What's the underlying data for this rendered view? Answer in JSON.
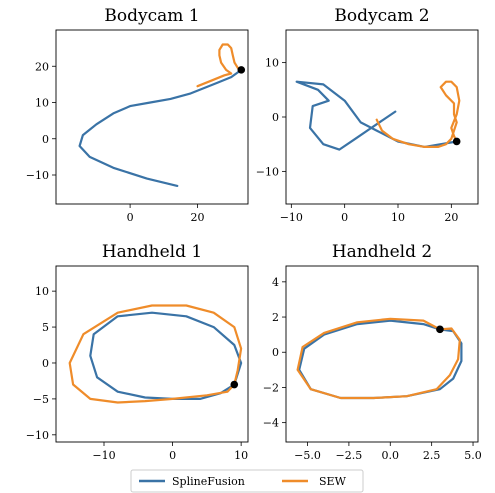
{
  "colors": {
    "SplineFusion": "#3a73a6",
    "SEW": "#ef8c2a",
    "endpoint": "#000000"
  },
  "legend": {
    "placement": "bottom-center",
    "entries": [
      "SplineFusion",
      "SEW"
    ]
  },
  "chart_data": [
    {
      "type": "line",
      "title": "Bodycam 1",
      "xlim": [
        -22,
        35
      ],
      "ylim": [
        -18,
        30
      ],
      "xticks": [
        0,
        20
      ],
      "yticks": [
        -10,
        0,
        10,
        20
      ],
      "grid": false,
      "series": [
        {
          "name": "SplineFusion",
          "x": [
            14,
            5,
            -5,
            -12,
            -15,
            -14,
            -10,
            -5,
            0,
            6,
            12,
            18,
            22,
            26,
            30,
            33
          ],
          "y": [
            -13,
            -11,
            -8,
            -5,
            -2,
            1,
            4,
            7,
            9,
            10,
            11,
            12.5,
            14,
            15.5,
            17,
            19
          ]
        },
        {
          "name": "SEW",
          "x": [
            20,
            24,
            28,
            30,
            28.5,
            27,
            26.5,
            26.5,
            27.5,
            29,
            30,
            30.5,
            31,
            32,
            33
          ],
          "y": [
            14.5,
            16,
            17.5,
            18,
            19,
            21,
            23,
            24.5,
            26,
            26,
            25,
            23,
            21,
            19.5,
            19
          ]
        }
      ],
      "endpoint": [
        33,
        19
      ]
    },
    {
      "type": "line",
      "title": "Bodycam 2",
      "xlim": [
        -11,
        25
      ],
      "ylim": [
        -16,
        16
      ],
      "xticks": [
        -10,
        0,
        10,
        20
      ],
      "yticks": [
        -10,
        0,
        10
      ],
      "grid": false,
      "series": [
        {
          "name": "SplineFusion",
          "x": [
            9.5,
            5,
            2,
            -1,
            -4,
            -6.5,
            -6,
            -3,
            -5,
            -9,
            -4,
            0,
            3,
            6,
            10,
            15,
            21
          ],
          "y": [
            1,
            -2,
            -4,
            -6,
            -5,
            -2,
            2,
            3,
            5,
            6.5,
            6,
            3,
            -1,
            -2.5,
            -4.5,
            -5.5,
            -4.5
          ]
        },
        {
          "name": "SEW",
          "x": [
            6,
            7,
            9,
            12,
            15,
            17.5,
            19,
            20,
            20.5,
            21,
            20.5,
            20.5,
            19,
            18,
            19,
            20,
            21,
            21.5,
            21,
            20,
            20.5,
            21
          ],
          "y": [
            -0.5,
            -2.5,
            -4,
            -5,
            -5.5,
            -5.5,
            -5,
            -4,
            -2.5,
            -1,
            0.5,
            2.5,
            4,
            5.5,
            6.5,
            6.5,
            5.5,
            3,
            0.5,
            -2,
            -3.5,
            -4.5
          ]
        }
      ],
      "endpoint": [
        21,
        -4.5
      ]
    },
    {
      "type": "line",
      "title": "Handheld 1",
      "xlim": [
        -17,
        11
      ],
      "ylim": [
        -11,
        13.5
      ],
      "xticks": [
        -10,
        0,
        10
      ],
      "yticks": [
        -10,
        -5,
        0,
        5,
        10
      ],
      "grid": false,
      "series": [
        {
          "name": "SplineFusion",
          "x": [
            9,
            10,
            9,
            6,
            2,
            -3,
            -8,
            -11.5,
            -12,
            -11,
            -8,
            -4,
            0,
            4,
            7,
            9
          ],
          "y": [
            -3,
            0,
            2.5,
            5,
            6.5,
            7,
            6.5,
            4,
            1,
            -2,
            -4,
            -4.8,
            -5,
            -5,
            -4.2,
            -3
          ]
        },
        {
          "name": "SEW",
          "x": [
            9,
            9.5,
            10,
            9,
            6,
            2,
            -3,
            -8,
            -13,
            -15,
            -14.5,
            -12,
            -8,
            -4,
            0,
            5,
            8,
            9
          ],
          "y": [
            -3,
            -1,
            2,
            5,
            7,
            8,
            8,
            7,
            4,
            0,
            -3,
            -5,
            -5.5,
            -5.3,
            -5,
            -4.5,
            -4,
            -3
          ]
        }
      ],
      "endpoint": [
        9,
        -3
      ]
    },
    {
      "type": "line",
      "title": "Handheld 2",
      "xlim": [
        -6.3,
        5.3
      ],
      "ylim": [
        -5.1,
        4.9
      ],
      "xticks": [
        -5.0,
        -2.5,
        0.0,
        2.5,
        5.0
      ],
      "yticks": [
        -4,
        -2,
        0,
        2,
        4
      ],
      "grid": false,
      "series": [
        {
          "name": "SplineFusion",
          "x": [
            3,
            3.8,
            4.3,
            4.3,
            3.8,
            3,
            1,
            -1,
            -3,
            -4.8,
            -5.5,
            -5.2,
            -4,
            -2,
            0,
            2,
            3
          ],
          "y": [
            1.3,
            1.2,
            0.5,
            -0.5,
            -1.5,
            -2.1,
            -2.5,
            -2.6,
            -2.6,
            -2.1,
            -1,
            0.2,
            1,
            1.6,
            1.8,
            1.6,
            1.3
          ]
        },
        {
          "name": "SEW",
          "x": [
            3,
            3.7,
            4.2,
            4.1,
            3.6,
            2.8,
            1,
            -1,
            -3,
            -4.8,
            -5.6,
            -5.3,
            -4,
            -2,
            0,
            2,
            3
          ],
          "y": [
            1.3,
            1.35,
            0.7,
            -0.4,
            -1.3,
            -2.1,
            -2.5,
            -2.6,
            -2.6,
            -2.1,
            -1,
            0.3,
            1.1,
            1.7,
            1.9,
            1.8,
            1.3
          ]
        }
      ],
      "endpoint": [
        3,
        1.3
      ]
    }
  ]
}
